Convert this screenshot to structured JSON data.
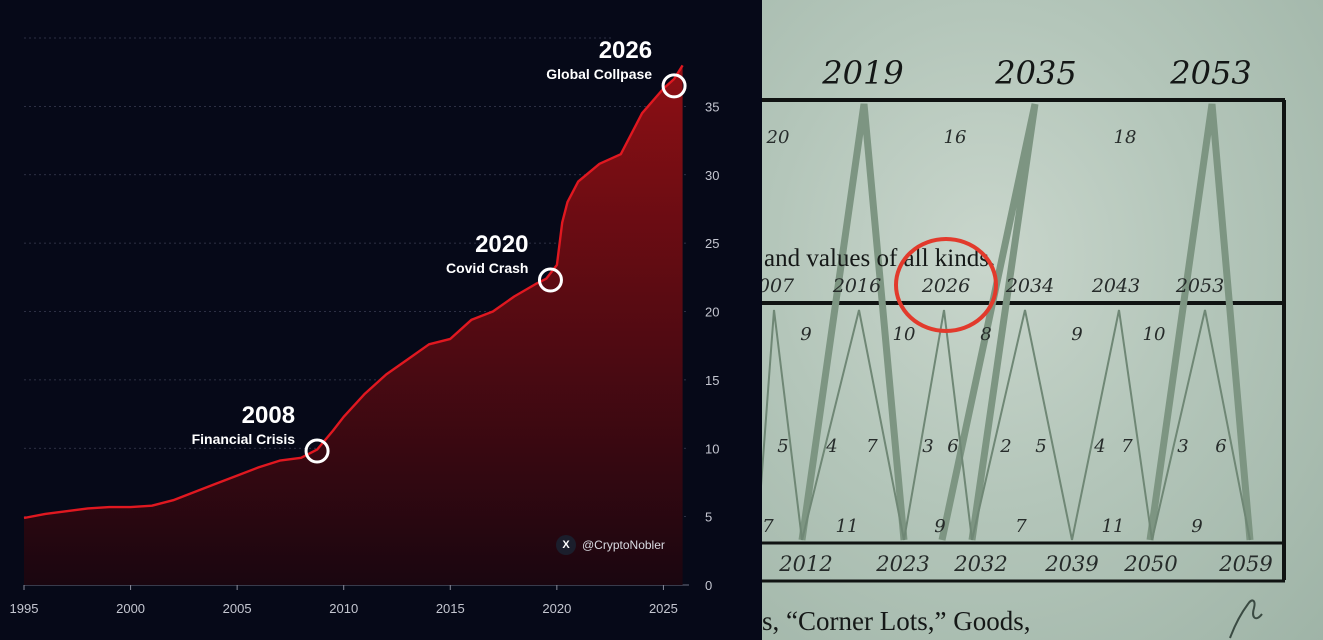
{
  "chart_data": {
    "type": "area",
    "x_ticks": [
      "1995",
      "2000",
      "2005",
      "2010",
      "2015",
      "2020",
      "2025"
    ],
    "y_ticks": [
      "0",
      "5",
      "10",
      "15",
      "20",
      "25",
      "30",
      "35"
    ],
    "xlim": [
      1995,
      2026.2
    ],
    "ylim": [
      0,
      40
    ],
    "grid": true,
    "y_axis_side": "right",
    "series": [
      {
        "x": [
          1995,
          1996,
          1997,
          1998,
          1999,
          2000,
          2001,
          2002,
          2003,
          2004,
          2005,
          2006,
          2007,
          2008,
          2008.75,
          2009.5,
          2010,
          2011,
          2012,
          2013,
          2014,
          2015,
          2016,
          2017,
          2018,
          2019,
          2019.5,
          2020,
          2020.25,
          2020.5,
          2021,
          2022,
          2023,
          2024,
          2025,
          2025.5,
          2025.9
        ],
        "y": [
          4.9,
          5.2,
          5.4,
          5.6,
          5.7,
          5.7,
          5.8,
          6.2,
          6.8,
          7.4,
          8.0,
          8.6,
          9.1,
          9.3,
          9.9,
          11.3,
          12.3,
          14.0,
          15.4,
          16.5,
          17.6,
          18.0,
          19.4,
          20.0,
          21.1,
          22.0,
          22.4,
          23.4,
          26.5,
          28.0,
          29.5,
          30.8,
          31.5,
          34.5,
          36.3,
          37.0,
          38.0
        ]
      }
    ],
    "annotations": [
      {
        "year": "2008",
        "label": "Financial Crisis",
        "x": 2008.75,
        "y": 9.8
      },
      {
        "year": "2020",
        "label": "Covid Crash",
        "x": 2019.7,
        "y": 22.3
      },
      {
        "year": "2026",
        "label": "Global Collpase",
        "x": 2025.5,
        "y": 36.5
      }
    ],
    "colors": {
      "line": "#e01820",
      "fill_top": "#8e0f14",
      "fill_bottom": "#1a0610",
      "marker": "#ffffff",
      "background": "#060918"
    }
  },
  "credit": {
    "icon": "x-logo",
    "handle": "@CryptoNobler",
    "x_label": "X"
  },
  "photo": {
    "top_years": [
      "2019",
      "2035",
      "2053"
    ],
    "top_numbers": [
      "20",
      "16",
      "18"
    ],
    "middle_text": "and values of all kinds.",
    "middle_years": [
      "007",
      "2016",
      "2026",
      "2034",
      "2043",
      "2053"
    ],
    "middle_numbers": [
      "9",
      "10",
      "8",
      "9",
      "10"
    ],
    "inner_numbers": [
      "5",
      "4",
      "7",
      "3",
      "6",
      "2",
      "5",
      "4",
      "7",
      "3",
      "6"
    ],
    "bottom_numbers": [
      "7",
      "11",
      "9",
      "7",
      "11",
      "9"
    ],
    "bottom_years": [
      "2012",
      "2023",
      "2032",
      "2039",
      "2050",
      "2059"
    ],
    "bottom_text": "s, “Corner Lots,” Goods,",
    "highlight_color": "#e23a2c"
  }
}
